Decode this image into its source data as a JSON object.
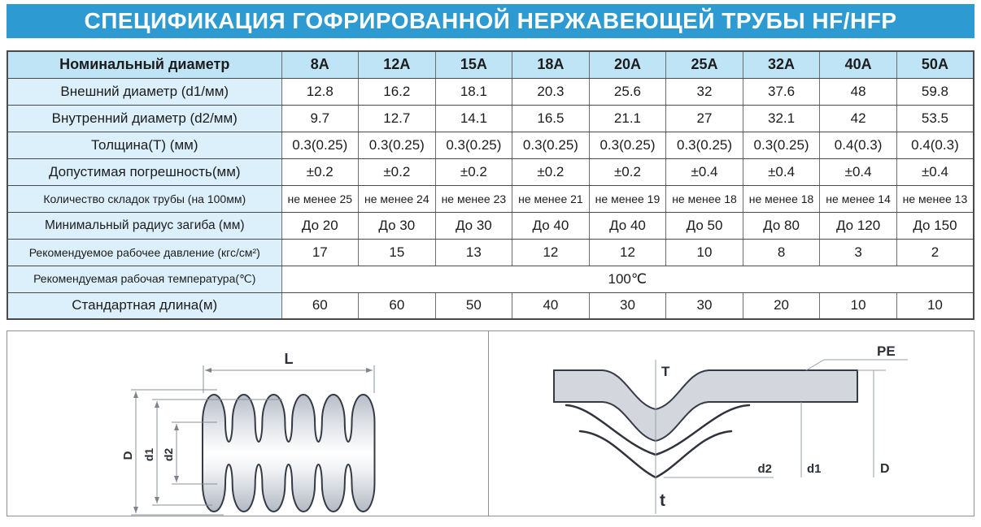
{
  "colors": {
    "title_bg": "#2D9BD2",
    "title_text": "#FFFFFF",
    "header_bg": "#BFE4F6",
    "label_bg": "#DCF0FB",
    "cell_bg": "#FFFFFF",
    "border_dark": "#4A4A4A",
    "box_border": "#8C9196"
  },
  "title": "СПЕЦИФИКАЦИЯ ГОФРИРОВАННОЙ НЕРЖАВЕЮЩЕЙ ТРУБЫ HF/HFP",
  "table": {
    "corner_label": "Номинальный  диаметр",
    "columns": [
      "8A",
      "12A",
      "15A",
      "18A",
      "20A",
      "25A",
      "32A",
      "40A",
      "50A"
    ],
    "rows": [
      {
        "label": "Внешний диаметр (d1/мм)",
        "values": [
          "12.8",
          "16.2",
          "18.1",
          "20.3",
          "25.6",
          "32",
          "37.6",
          "48",
          "59.8"
        ]
      },
      {
        "label": "Внутренний диаметр (d2/мм)",
        "values": [
          "9.7",
          "12.7",
          "14.1",
          "16.5",
          "21.1",
          "27",
          "32.1",
          "42",
          "53.5"
        ]
      },
      {
        "label": "Толщина(T) (мм)",
        "values": [
          "0.3(0.25)",
          "0.3(0.25)",
          "0.3(0.25)",
          "0.3(0.25)",
          "0.3(0.25)",
          "0.3(0.25)",
          "0.3(0.25)",
          "0.4(0.3)",
          "0.4(0.3)"
        ]
      },
      {
        "label": "Допустимая  погрешность(мм)",
        "values": [
          "±0.2",
          "±0.2",
          "±0.2",
          "±0.2",
          "±0.2",
          "±0.4",
          "±0.4",
          "±0.4",
          "±0.4"
        ]
      },
      {
        "label": "Количество  складок трубы (на 100мм)",
        "values": [
          "не менее 25",
          "не менее 24",
          "не менее 23",
          "не менее 21",
          "не менее 19",
          "не менее 18",
          "не менее 18",
          "не менее 14",
          "не менее 13"
        ]
      },
      {
        "label": "Минимальный  радиус загиба (мм)",
        "values": [
          "До 20",
          "До 30",
          "До 30",
          "До 40",
          "До 40",
          "До 50",
          "До 80",
          "До 120",
          "До 150"
        ]
      },
      {
        "label": "Рекомендуемое рабочее давление (кгс/см²)",
        "values": [
          "17",
          "15",
          "13",
          "12",
          "12",
          "10",
          "8",
          "3",
          "2"
        ]
      },
      {
        "label": "Рекомендуемая рабочая температура(℃)",
        "span": "100℃"
      },
      {
        "label": "Стандартная  длина(м)",
        "values": [
          "60",
          "60",
          "50",
          "40",
          "30",
          "30",
          "20",
          "10",
          "10"
        ]
      }
    ]
  },
  "diagram_left": {
    "dim_L": "L",
    "dim_D": "D",
    "dim_d1": "d1",
    "dim_d2": "d2"
  },
  "diagram_right": {
    "dim_T": "T",
    "label_PE": "PE",
    "dim_d2": "d2",
    "dim_d1": "d1",
    "dim_D": "D",
    "dim_t": "t"
  }
}
